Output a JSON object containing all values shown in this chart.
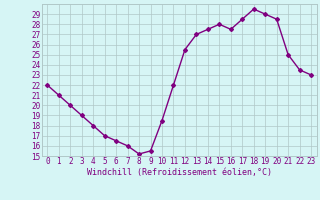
{
  "x": [
    0,
    1,
    2,
    3,
    4,
    5,
    6,
    7,
    8,
    9,
    10,
    11,
    12,
    13,
    14,
    15,
    16,
    17,
    18,
    19,
    20,
    21,
    22,
    23
  ],
  "y": [
    22,
    21,
    20,
    19,
    18,
    17,
    16.5,
    16,
    15.2,
    15.5,
    18.5,
    22,
    25.5,
    27,
    27.5,
    28,
    27.5,
    28.5,
    29.5,
    29,
    28.5,
    25,
    23.5,
    23
  ],
  "line_color": "#800080",
  "marker": "D",
  "marker_size": 2,
  "bg_color": "#d6f5f5",
  "grid_color": "#b0c8c8",
  "xlabel": "Windchill (Refroidissement éolien,°C)",
  "ylabel": "",
  "title": "",
  "xlim": [
    -0.5,
    23.5
  ],
  "ylim": [
    15,
    30
  ],
  "yticks": [
    15,
    16,
    17,
    18,
    19,
    20,
    21,
    22,
    23,
    24,
    25,
    26,
    27,
    28,
    29
  ],
  "xticks": [
    0,
    1,
    2,
    3,
    4,
    5,
    6,
    7,
    8,
    9,
    10,
    11,
    12,
    13,
    14,
    15,
    16,
    17,
    18,
    19,
    20,
    21,
    22,
    23
  ],
  "font_color": "#800080",
  "font_size": 5.5,
  "xlabel_fontsize": 6.0,
  "line_width": 1.0
}
